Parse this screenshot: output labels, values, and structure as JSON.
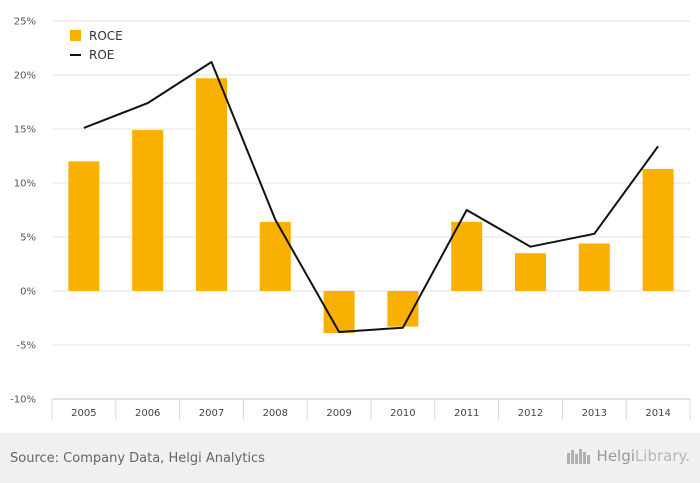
{
  "chart_data": {
    "type": "bar",
    "categories": [
      "2005",
      "2006",
      "2007",
      "2008",
      "2009",
      "2010",
      "2011",
      "2012",
      "2013",
      "2014"
    ],
    "series": [
      {
        "name": "ROCE",
        "type": "bar",
        "color": "#f9b000",
        "values": [
          12.0,
          14.9,
          19.7,
          6.4,
          -3.9,
          -3.3,
          6.4,
          3.5,
          4.4,
          11.3
        ]
      },
      {
        "name": "ROE",
        "type": "line",
        "color": "#111111",
        "values": [
          15.1,
          17.4,
          21.2,
          6.6,
          -3.8,
          -3.4,
          7.5,
          4.1,
          5.3,
          13.4
        ]
      }
    ],
    "y_ticks": [
      "25%",
      "20%",
      "15%",
      "10%",
      "5%",
      "0%",
      "-5%",
      "-10%"
    ],
    "ylim": [
      -10,
      25
    ],
    "grid": true,
    "legend": "top-left"
  },
  "footer": {
    "source": "Source: Company Data, Helgi Analytics",
    "brand_part1": "Helgi",
    "brand_part2": "Library."
  }
}
